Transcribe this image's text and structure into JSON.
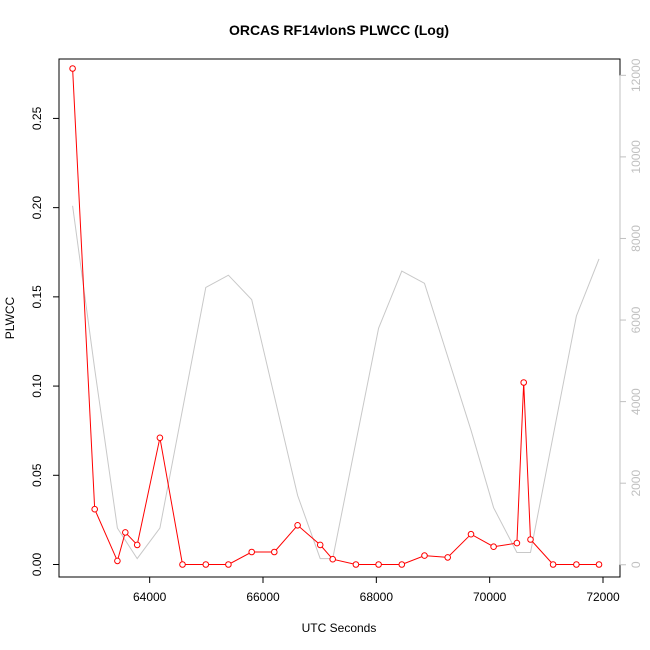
{
  "chart_data": {
    "type": "line",
    "title": "ORCAS RF14vlonS PLWCC (Log)",
    "xlabel": "UTC Seconds",
    "ylabel": "PLWCC",
    "xlim": [
      62400,
      72300
    ],
    "ylim": [
      -0.007,
      0.2833
    ],
    "y2lim": [
      -300,
      12400
    ],
    "x_ticks": [
      64000,
      66000,
      68000,
      70000,
      72000
    ],
    "y_ticks": [
      0.0,
      0.05,
      0.1,
      0.15,
      0.2,
      0.25
    ],
    "y2_ticks": [
      0,
      2000,
      4000,
      6000,
      8000,
      10000,
      12000
    ],
    "grid": false,
    "colors": {
      "primary": "#ff0000",
      "secondary": "#c8c8c8",
      "right_axis": "#c0c0c0"
    },
    "series": [
      {
        "axis": "left",
        "style": "line-circles",
        "color": "#ff0000",
        "x": [
          62640,
          63030,
          63430,
          63570,
          63780,
          64180,
          64580,
          64990,
          65390,
          65800,
          66200,
          66610,
          67010,
          67230,
          67640,
          68040,
          68450,
          68850,
          69260,
          69670,
          70070,
          70480,
          70600,
          70720,
          71120,
          71530,
          71930
        ],
        "y": [
          0.278,
          0.031,
          0.002,
          0.018,
          0.011,
          0.071,
          0.0,
          0.0,
          0.0,
          0.007,
          0.007,
          0.022,
          0.011,
          0.003,
          0.0,
          0.0,
          0.0,
          0.005,
          0.004,
          0.017,
          0.01,
          0.012,
          0.102,
          0.014,
          0.0,
          0.0,
          0.0
        ]
      },
      {
        "axis": "right",
        "style": "line",
        "color": "#c8c8c8",
        "x": [
          62640,
          63030,
          63430,
          63780,
          64180,
          64990,
          65390,
          65800,
          66610,
          67010,
          67230,
          68040,
          68450,
          68850,
          69670,
          70070,
          70480,
          70720,
          71530,
          71930
        ],
        "y": [
          8800,
          4800,
          900,
          150,
          900,
          6800,
          7100,
          6500,
          1700,
          150,
          150,
          5800,
          7200,
          6900,
          3300,
          1400,
          300,
          300,
          6100,
          7500
        ]
      }
    ]
  }
}
